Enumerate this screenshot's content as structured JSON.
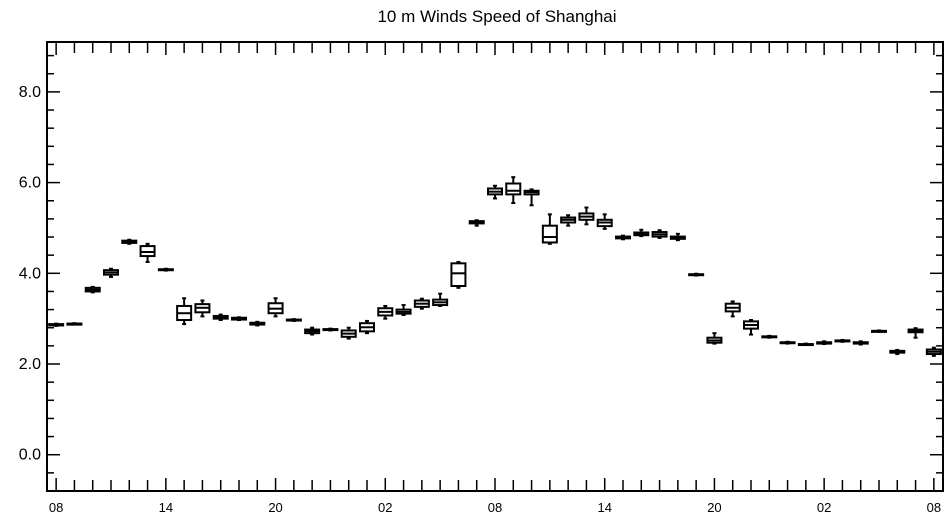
{
  "chart_data": {
    "type": "box",
    "title": "10 m Winds Speed of Shanghai",
    "xlabel": "",
    "ylabel": "",
    "ylim": [
      -0.8,
      9.1
    ],
    "y_major_ticks": [
      0.0,
      2.0,
      4.0,
      6.0,
      8.0
    ],
    "y_tick_labels": [
      "0.0",
      "2.0",
      "4.0",
      "6.0",
      "8.0"
    ],
    "y_minor_step": 0.4,
    "x_range": [
      -0.5,
      48.5
    ],
    "x_tick_positions": [
      0,
      6,
      12,
      18,
      24,
      30,
      36,
      42,
      48
    ],
    "x_tick_labels": [
      "08",
      "14",
      "20",
      "02",
      "08",
      "14",
      "20",
      "02",
      "08"
    ],
    "grid": false,
    "legend": "none",
    "boxes": [
      {
        "x": 0,
        "min": 2.84,
        "q1": 2.85,
        "median": 2.87,
        "q3": 2.88,
        "max": 2.89
      },
      {
        "x": 1,
        "min": 2.88,
        "q1": 2.88,
        "median": 2.89,
        "q3": 2.89,
        "max": 2.9
      },
      {
        "x": 2,
        "min": 3.58,
        "q1": 3.6,
        "median": 3.64,
        "q3": 3.68,
        "max": 3.7
      },
      {
        "x": 3,
        "min": 3.92,
        "q1": 3.97,
        "median": 4.02,
        "q3": 4.07,
        "max": 4.1
      },
      {
        "x": 4,
        "min": 4.65,
        "q1": 4.67,
        "median": 4.7,
        "q3": 4.72,
        "max": 4.74
      },
      {
        "x": 5,
        "min": 4.25,
        "q1": 4.38,
        "median": 4.47,
        "q3": 4.6,
        "max": 4.65
      },
      {
        "x": 6,
        "min": 4.06,
        "q1": 4.07,
        "median": 4.08,
        "q3": 4.09,
        "max": 4.1
      },
      {
        "x": 7,
        "min": 2.88,
        "q1": 2.97,
        "median": 3.12,
        "q3": 3.28,
        "max": 3.45
      },
      {
        "x": 8,
        "min": 3.05,
        "q1": 3.14,
        "median": 3.24,
        "q3": 3.32,
        "max": 3.4
      },
      {
        "x": 9,
        "min": 2.97,
        "q1": 3.0,
        "median": 3.03,
        "q3": 3.06,
        "max": 3.09
      },
      {
        "x": 10,
        "min": 2.97,
        "q1": 2.98,
        "median": 3.0,
        "q3": 3.02,
        "max": 3.03
      },
      {
        "x": 11,
        "min": 2.85,
        "q1": 2.87,
        "median": 2.89,
        "q3": 2.91,
        "max": 2.93
      },
      {
        "x": 12,
        "min": 3.05,
        "q1": 3.12,
        "median": 3.22,
        "q3": 3.34,
        "max": 3.45
      },
      {
        "x": 13,
        "min": 2.95,
        "q1": 2.96,
        "median": 2.97,
        "q3": 2.98,
        "max": 2.99
      },
      {
        "x": 14,
        "min": 2.65,
        "q1": 2.68,
        "median": 2.72,
        "q3": 2.76,
        "max": 2.8
      },
      {
        "x": 15,
        "min": 2.74,
        "q1": 2.75,
        "median": 2.76,
        "q3": 2.77,
        "max": 2.78
      },
      {
        "x": 16,
        "min": 2.56,
        "q1": 2.6,
        "median": 2.67,
        "q3": 2.74,
        "max": 2.8
      },
      {
        "x": 17,
        "min": 2.68,
        "q1": 2.72,
        "median": 2.81,
        "q3": 2.9,
        "max": 2.95
      },
      {
        "x": 18,
        "min": 3.0,
        "q1": 3.07,
        "median": 3.15,
        "q3": 3.23,
        "max": 3.28
      },
      {
        "x": 19,
        "min": 3.08,
        "q1": 3.11,
        "median": 3.15,
        "q3": 3.2,
        "max": 3.3
      },
      {
        "x": 20,
        "min": 3.22,
        "q1": 3.26,
        "median": 3.33,
        "q3": 3.4,
        "max": 3.44
      },
      {
        "x": 21,
        "min": 3.28,
        "q1": 3.3,
        "median": 3.36,
        "q3": 3.42,
        "max": 3.55
      },
      {
        "x": 22,
        "min": 3.68,
        "q1": 3.72,
        "median": 4.0,
        "q3": 4.22,
        "max": 4.25
      },
      {
        "x": 23,
        "min": 5.05,
        "q1": 5.1,
        "median": 5.13,
        "q3": 5.15,
        "max": 5.17
      },
      {
        "x": 24,
        "min": 5.65,
        "q1": 5.74,
        "median": 5.8,
        "q3": 5.87,
        "max": 5.93
      },
      {
        "x": 25,
        "min": 5.55,
        "q1": 5.74,
        "median": 5.82,
        "q3": 5.98,
        "max": 6.12
      },
      {
        "x": 26,
        "min": 5.5,
        "q1": 5.74,
        "median": 5.79,
        "q3": 5.82,
        "max": 5.85
      },
      {
        "x": 27,
        "min": 4.65,
        "q1": 4.68,
        "median": 4.8,
        "q3": 5.05,
        "max": 5.3
      },
      {
        "x": 28,
        "min": 5.05,
        "q1": 5.12,
        "median": 5.18,
        "q3": 5.23,
        "max": 5.28
      },
      {
        "x": 29,
        "min": 5.08,
        "q1": 5.18,
        "median": 5.25,
        "q3": 5.32,
        "max": 5.45
      },
      {
        "x": 30,
        "min": 4.98,
        "q1": 5.04,
        "median": 5.12,
        "q3": 5.18,
        "max": 5.3
      },
      {
        "x": 31,
        "min": 4.75,
        "q1": 4.77,
        "median": 4.79,
        "q3": 4.81,
        "max": 4.83
      },
      {
        "x": 32,
        "min": 4.82,
        "q1": 4.84,
        "median": 4.87,
        "q3": 4.9,
        "max": 4.96
      },
      {
        "x": 33,
        "min": 4.78,
        "q1": 4.81,
        "median": 4.86,
        "q3": 4.91,
        "max": 4.95
      },
      {
        "x": 34,
        "min": 4.73,
        "q1": 4.76,
        "median": 4.78,
        "q3": 4.81,
        "max": 4.87
      },
      {
        "x": 35,
        "min": 3.95,
        "q1": 3.96,
        "median": 3.97,
        "q3": 3.98,
        "max": 3.99
      },
      {
        "x": 36,
        "min": 2.45,
        "q1": 2.47,
        "median": 2.52,
        "q3": 2.58,
        "max": 2.68
      },
      {
        "x": 37,
        "min": 3.05,
        "q1": 3.16,
        "median": 3.24,
        "q3": 3.33,
        "max": 3.38
      },
      {
        "x": 38,
        "min": 2.65,
        "q1": 2.78,
        "median": 2.86,
        "q3": 2.94,
        "max": 2.97
      },
      {
        "x": 39,
        "min": 2.58,
        "q1": 2.59,
        "median": 2.6,
        "q3": 2.61,
        "max": 2.62
      },
      {
        "x": 40,
        "min": 2.45,
        "q1": 2.46,
        "median": 2.47,
        "q3": 2.48,
        "max": 2.49
      },
      {
        "x": 41,
        "min": 2.42,
        "q1": 2.43,
        "median": 2.43,
        "q3": 2.44,
        "max": 2.45
      },
      {
        "x": 42,
        "min": 2.44,
        "q1": 2.45,
        "median": 2.47,
        "q3": 2.48,
        "max": 2.5
      },
      {
        "x": 43,
        "min": 2.49,
        "q1": 2.5,
        "median": 2.51,
        "q3": 2.52,
        "max": 2.53
      },
      {
        "x": 44,
        "min": 2.43,
        "q1": 2.45,
        "median": 2.47,
        "q3": 2.48,
        "max": 2.5
      },
      {
        "x": 45,
        "min": 2.71,
        "q1": 2.72,
        "median": 2.73,
        "q3": 2.73,
        "max": 2.74
      },
      {
        "x": 46,
        "min": 2.22,
        "q1": 2.25,
        "median": 2.27,
        "q3": 2.29,
        "max": 2.31
      },
      {
        "x": 47,
        "min": 2.58,
        "q1": 2.7,
        "median": 2.73,
        "q3": 2.76,
        "max": 2.79
      },
      {
        "x": 48,
        "min": 2.18,
        "q1": 2.22,
        "median": 2.27,
        "q3": 2.32,
        "max": 2.36
      }
    ]
  }
}
